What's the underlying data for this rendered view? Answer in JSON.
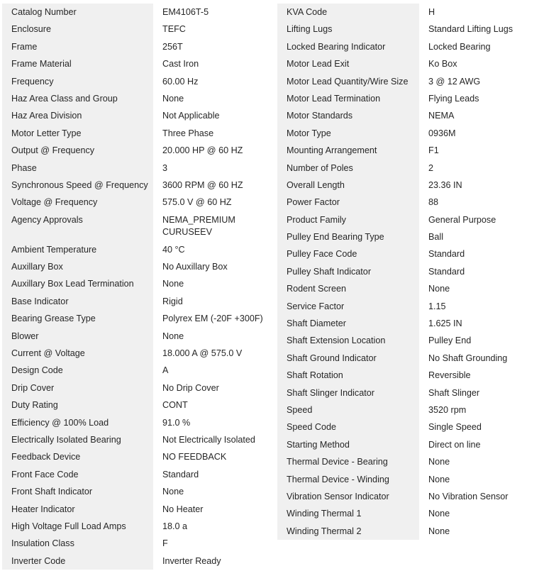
{
  "left": [
    {
      "label": "Catalog Number",
      "value": "EM4106T-5"
    },
    {
      "label": "Enclosure",
      "value": "TEFC"
    },
    {
      "label": "Frame",
      "value": "256T"
    },
    {
      "label": "Frame Material",
      "value": "Cast Iron"
    },
    {
      "label": "Frequency",
      "value": "60.00 Hz"
    },
    {
      "label": "Haz Area Class and Group",
      "value": "None"
    },
    {
      "label": "Haz Area Division",
      "value": "Not Applicable"
    },
    {
      "label": "Motor Letter Type",
      "value": "Three Phase"
    },
    {
      "label": "Output @ Frequency",
      "value": "20.000 HP @ 60 HZ"
    },
    {
      "label": "Phase",
      "value": "3"
    },
    {
      "label": "Synchronous Speed @ Frequency",
      "value": "3600 RPM @ 60 HZ"
    },
    {
      "label": "Voltage @ Frequency",
      "value": "575.0 V @ 60 HZ"
    },
    {
      "label": "Agency Approvals",
      "value": "NEMA_PREMIUM\nCURUSEEV"
    },
    {
      "label": "Ambient Temperature",
      "value": "40 °C"
    },
    {
      "label": "Auxillary Box",
      "value": "No Auxillary Box"
    },
    {
      "label": "Auxillary Box Lead Termination",
      "value": "None"
    },
    {
      "label": "Base Indicator",
      "value": "Rigid"
    },
    {
      "label": "Bearing Grease Type",
      "value": "Polyrex EM (-20F +300F)"
    },
    {
      "label": "Blower",
      "value": "None"
    },
    {
      "label": "Current @ Voltage",
      "value": "18.000 A @ 575.0 V"
    },
    {
      "label": "Design Code",
      "value": "A"
    },
    {
      "label": "Drip Cover",
      "value": "No Drip Cover"
    },
    {
      "label": "Duty Rating",
      "value": "CONT"
    },
    {
      "label": "Efficiency @ 100% Load",
      "value": "91.0 %"
    },
    {
      "label": "Electrically Isolated Bearing",
      "value": "Not Electrically Isolated"
    },
    {
      "label": "Feedback Device",
      "value": "NO FEEDBACK"
    },
    {
      "label": "Front Face Code",
      "value": "Standard"
    },
    {
      "label": "Front Shaft Indicator",
      "value": "None"
    },
    {
      "label": "Heater Indicator",
      "value": "No Heater"
    },
    {
      "label": "High Voltage Full Load Amps",
      "value": "18.0 a"
    },
    {
      "label": "Insulation Class",
      "value": "F"
    },
    {
      "label": "Inverter Code",
      "value": "Inverter Ready"
    }
  ],
  "right": [
    {
      "label": "KVA Code",
      "value": "H"
    },
    {
      "label": "Lifting Lugs",
      "value": "Standard Lifting Lugs"
    },
    {
      "label": "Locked Bearing Indicator",
      "value": "Locked Bearing"
    },
    {
      "label": "Motor Lead Exit",
      "value": "Ko Box"
    },
    {
      "label": "Motor Lead Quantity/Wire Size",
      "value": "3 @ 12 AWG"
    },
    {
      "label": "Motor Lead Termination",
      "value": "Flying Leads"
    },
    {
      "label": "Motor Standards",
      "value": "NEMA"
    },
    {
      "label": "Motor Type",
      "value": "0936M"
    },
    {
      "label": "Mounting Arrangement",
      "value": "F1"
    },
    {
      "label": "Number of Poles",
      "value": "2"
    },
    {
      "label": "Overall Length",
      "value": "23.36 IN"
    },
    {
      "label": "Power Factor",
      "value": "88"
    },
    {
      "label": "Product Family",
      "value": "General Purpose"
    },
    {
      "label": "Pulley End Bearing Type",
      "value": "Ball"
    },
    {
      "label": "Pulley Face Code",
      "value": "Standard"
    },
    {
      "label": "Pulley Shaft Indicator",
      "value": "Standard"
    },
    {
      "label": "Rodent Screen",
      "value": "None"
    },
    {
      "label": "Service Factor",
      "value": "1.15"
    },
    {
      "label": "Shaft Diameter",
      "value": "1.625 IN"
    },
    {
      "label": "Shaft Extension Location",
      "value": "Pulley End"
    },
    {
      "label": "Shaft Ground Indicator",
      "value": "No Shaft Grounding"
    },
    {
      "label": "Shaft Rotation",
      "value": "Reversible"
    },
    {
      "label": "Shaft Slinger Indicator",
      "value": "Shaft Slinger"
    },
    {
      "label": "Speed",
      "value": "3520 rpm"
    },
    {
      "label": "Speed Code",
      "value": "Single Speed"
    },
    {
      "label": "Starting Method",
      "value": "Direct on line"
    },
    {
      "label": "Thermal Device - Bearing",
      "value": "None"
    },
    {
      "label": "Thermal Device - Winding",
      "value": "None"
    },
    {
      "label": "Vibration Sensor Indicator",
      "value": "No Vibration Sensor"
    },
    {
      "label": "Winding Thermal 1",
      "value": "None"
    },
    {
      "label": "Winding Thermal 2",
      "value": "None"
    }
  ]
}
